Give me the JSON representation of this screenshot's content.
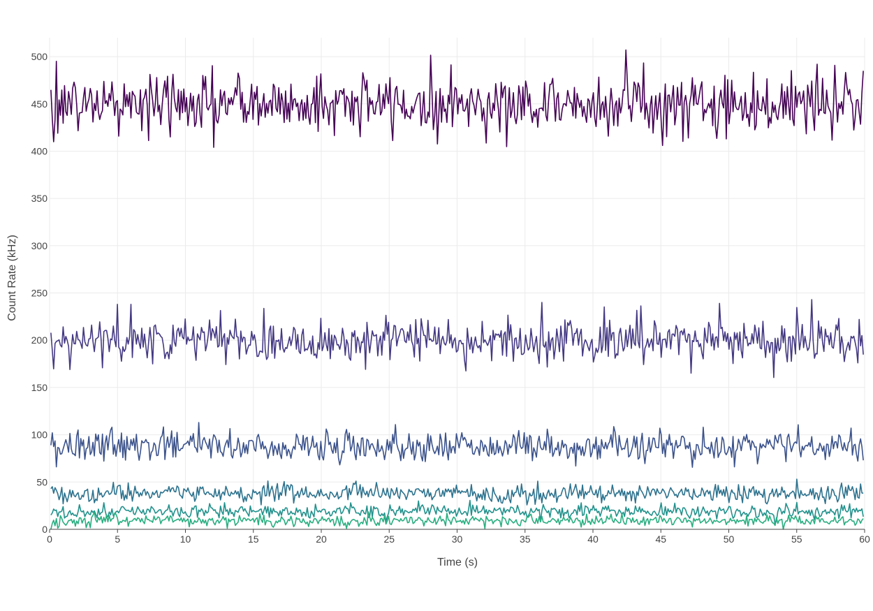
{
  "chart_data": {
    "type": "line",
    "title": "",
    "xlabel": "Time (s)",
    "ylabel": "Count Rate (kHz)",
    "xlim": [
      0,
      60
    ],
    "ylim": [
      0,
      520
    ],
    "grid": true,
    "legend": "none",
    "x_ticks": [
      "0",
      "5",
      "10",
      "15",
      "20",
      "25",
      "30",
      "35",
      "40",
      "45",
      "50",
      "55",
      "60"
    ],
    "y_ticks": [
      "0",
      "50",
      "100",
      "150",
      "200",
      "250",
      "300",
      "350",
      "400",
      "450",
      "500"
    ],
    "x_start": 0.1,
    "x_end": 59.9,
    "sample_count": 600,
    "series": [
      {
        "mean": 450,
        "spread": 16,
        "color": "#440154",
        "peaks": [
          [
            0.5,
            495
          ],
          [
            42.4,
            507
          ],
          [
            56.5,
            492
          ],
          [
            59.9,
            485
          ]
        ],
        "troughs": [
          [
            0.3,
            410
          ],
          [
            12.1,
            404
          ],
          [
            45.1,
            406
          ],
          [
            49.8,
            413
          ]
        ]
      },
      {
        "mean": 200,
        "spread": 12,
        "color": "#443983",
        "peaks": [
          [
            5.0,
            238
          ],
          [
            6.0,
            238
          ],
          [
            36.2,
            240
          ],
          [
            49.3,
            239
          ],
          [
            56.1,
            243
          ]
        ],
        "troughs": [
          [
            7.6,
            175
          ],
          [
            40.0,
            177
          ]
        ]
      },
      {
        "mean": 88,
        "spread": 8,
        "color": "#3b528b",
        "peaks": [
          [
            11.0,
            113
          ],
          [
            4.6,
            108
          ],
          [
            48.1,
            108
          ],
          [
            59.0,
            107
          ]
        ],
        "troughs": [
          [
            0.5,
            66
          ],
          [
            50.4,
            66
          ],
          [
            38.7,
            67
          ]
        ]
      },
      {
        "mean": 38,
        "spread": 4.5,
        "color": "#2c728e",
        "peaks": [
          [
            22.6,
            51
          ],
          [
            55.0,
            53
          ],
          [
            35.9,
            51
          ]
        ],
        "troughs": [
          [
            1.0,
            27
          ]
        ]
      },
      {
        "mean": 19,
        "spread": 3.5,
        "color": "#21918c",
        "peaks": [
          [
            22.2,
            28
          ],
          [
            39.1,
            28
          ],
          [
            45.0,
            28
          ],
          [
            58.9,
            27
          ]
        ],
        "troughs": []
      },
      {
        "mean": 9,
        "spread": 3,
        "color": "#28ae80",
        "peaks": [
          [
            15.8,
            15
          ],
          [
            39.5,
            16
          ],
          [
            57.8,
            13
          ]
        ],
        "troughs": []
      }
    ]
  }
}
